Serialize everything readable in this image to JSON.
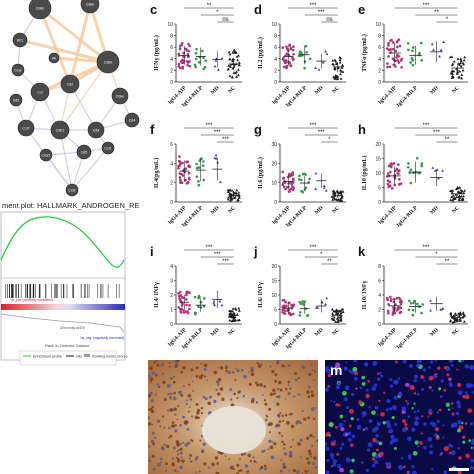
{
  "network": {
    "nodes": [
      "Cdkb",
      "Cdkb",
      "Wt1",
      "Wt",
      "Cdkb",
      "Cxcr",
      "Cd2",
      "Ccl",
      "Cd3",
      "Cdkn",
      "Ccl7",
      "Cdk1",
      "Cd8",
      "Cd4",
      "Cxcr1",
      "Cd5",
      "Ccl1",
      "Ccl2"
    ],
    "colors": {
      "node": "#4a4a4a",
      "edge_orange": "#f4c99a",
      "edge_purple": "#c9c2e0"
    }
  },
  "gsea": {
    "title": "ment plot: HALLMARK_ANDROGEN_RESPONSE",
    "xlabel": "Rank in Ordered Dataset",
    "zero_label": "Zero cross at 870",
    "pos_label": "'na_pos' (positively correlated)",
    "neg_label": "'na_neg' (negatively correlated)",
    "legend": [
      "Enrichment profile",
      "Hits",
      "Ranking metric scores"
    ],
    "colors": {
      "curve": "#2bcc3a",
      "hits": "#111111"
    }
  },
  "categories": [
    "IgG4-AIP",
    "IgG4-RILP",
    "MD",
    "NC"
  ],
  "colors": {
    "IgG4-AIP": "#b3327a",
    "IgG4-RILP": "#2e9a4a",
    "MD": "#4a3d9a",
    "NC": "#1a1a1a"
  },
  "panels": [
    {
      "letter": "c",
      "ylabel": "IFNγ (pg/mL)",
      "ticks": [
        "0",
        "2",
        "4",
        "6",
        "8",
        "10"
      ],
      "ymax": 10,
      "means": [
        4.6,
        4.4,
        3.9,
        3.1
      ],
      "sig": [
        {
          "i": 0,
          "j": 3,
          "t": "**"
        },
        {
          "i": 1,
          "j": 3,
          "t": "*"
        },
        {
          "i": 2,
          "j": 3,
          "t": "ns"
        }
      ]
    },
    {
      "letter": "d",
      "ylabel": "IL2 (pg/mL)",
      "ticks": [
        "0",
        "2",
        "4",
        "6",
        "8",
        "10"
      ],
      "ymax": 10,
      "means": [
        4.4,
        4.7,
        3.6,
        2.6
      ],
      "sig": [
        {
          "i": 0,
          "j": 3,
          "t": "***"
        },
        {
          "i": 1,
          "j": 3,
          "t": "***"
        },
        {
          "i": 2,
          "j": 3,
          "t": "ns"
        }
      ]
    },
    {
      "letter": "e",
      "ylabel": "TNFα (pg/mL)",
      "ticks": [
        "0",
        "2",
        "4",
        "6",
        "8",
        "10"
      ],
      "ymax": 10,
      "means": [
        5.0,
        4.6,
        5.2,
        2.4
      ],
      "sig": [
        {
          "i": 0,
          "j": 3,
          "t": "***"
        },
        {
          "i": 1,
          "j": 3,
          "t": "**"
        },
        {
          "i": 2,
          "j": 3,
          "t": "*"
        }
      ]
    },
    {
      "letter": "f",
      "ylabel": "IL4(pg/mL)",
      "ticks": [
        "0",
        "2",
        "4",
        "6"
      ],
      "ymax": 6,
      "means": [
        3.2,
        3.3,
        3.4,
        0.7
      ],
      "sig": [
        {
          "i": 0,
          "j": 3,
          "t": "***"
        },
        {
          "i": 1,
          "j": 3,
          "t": "***"
        },
        {
          "i": 2,
          "j": 3,
          "t": "***"
        }
      ]
    },
    {
      "letter": "g",
      "ylabel": "IL6 (pg/mL)",
      "ticks": [
        "0",
        "10",
        "20",
        "30"
      ],
      "ymax": 30,
      "means": [
        10.5,
        9.8,
        11.0,
        3.2
      ],
      "sig": [
        {
          "i": 0,
          "j": 3,
          "t": "***"
        },
        {
          "i": 1,
          "j": 3,
          "t": "***"
        },
        {
          "i": 2,
          "j": 3,
          "t": "*"
        }
      ]
    },
    {
      "letter": "h",
      "ylabel": "IL10 (pg/mL)",
      "ticks": [
        "0",
        "5",
        "10",
        "15",
        "20"
      ],
      "ymax": 20,
      "means": [
        9.0,
        10.3,
        8.5,
        2.8
      ],
      "sig": [
        {
          "i": 0,
          "j": 3,
          "t": "***"
        },
        {
          "i": 1,
          "j": 3,
          "t": "***"
        },
        {
          "i": 2,
          "j": 3,
          "t": "**"
        }
      ]
    },
    {
      "letter": "i",
      "ylabel": "IL4/ INFγ",
      "ticks": [
        "0",
        "1",
        "2",
        "3",
        "4"
      ],
      "ymax": 4,
      "means": [
        1.5,
        1.3,
        1.7,
        0.6
      ],
      "sig": [
        {
          "i": 0,
          "j": 3,
          "t": "***"
        },
        {
          "i": 1,
          "j": 3,
          "t": "***"
        },
        {
          "i": 2,
          "j": 3,
          "t": "***"
        }
      ]
    },
    {
      "letter": "j",
      "ylabel": "IL6/ INFγ",
      "ticks": [
        "0",
        "5",
        "10",
        "15",
        "20"
      ],
      "ymax": 20,
      "means": [
        5.5,
        5.3,
        6.2,
        3.0
      ],
      "sig": [
        {
          "i": 0,
          "j": 3,
          "t": "***"
        },
        {
          "i": 1,
          "j": 3,
          "t": "*"
        },
        {
          "i": 2,
          "j": 3,
          "t": "**"
        }
      ]
    },
    {
      "letter": "k",
      "ylabel": "IL10/ INFγ",
      "ticks": [
        "0",
        "2",
        "4",
        "6",
        "8"
      ],
      "ymax": 8,
      "means": [
        2.5,
        2.4,
        2.8,
        0.9
      ],
      "sig": [
        {
          "i": 0,
          "j": 3,
          "t": "***"
        },
        {
          "i": 1,
          "j": 3,
          "t": "*"
        },
        {
          "i": 2,
          "j": 3,
          "t": "**"
        }
      ]
    }
  ],
  "micro": {
    "if_letter": "m"
  }
}
